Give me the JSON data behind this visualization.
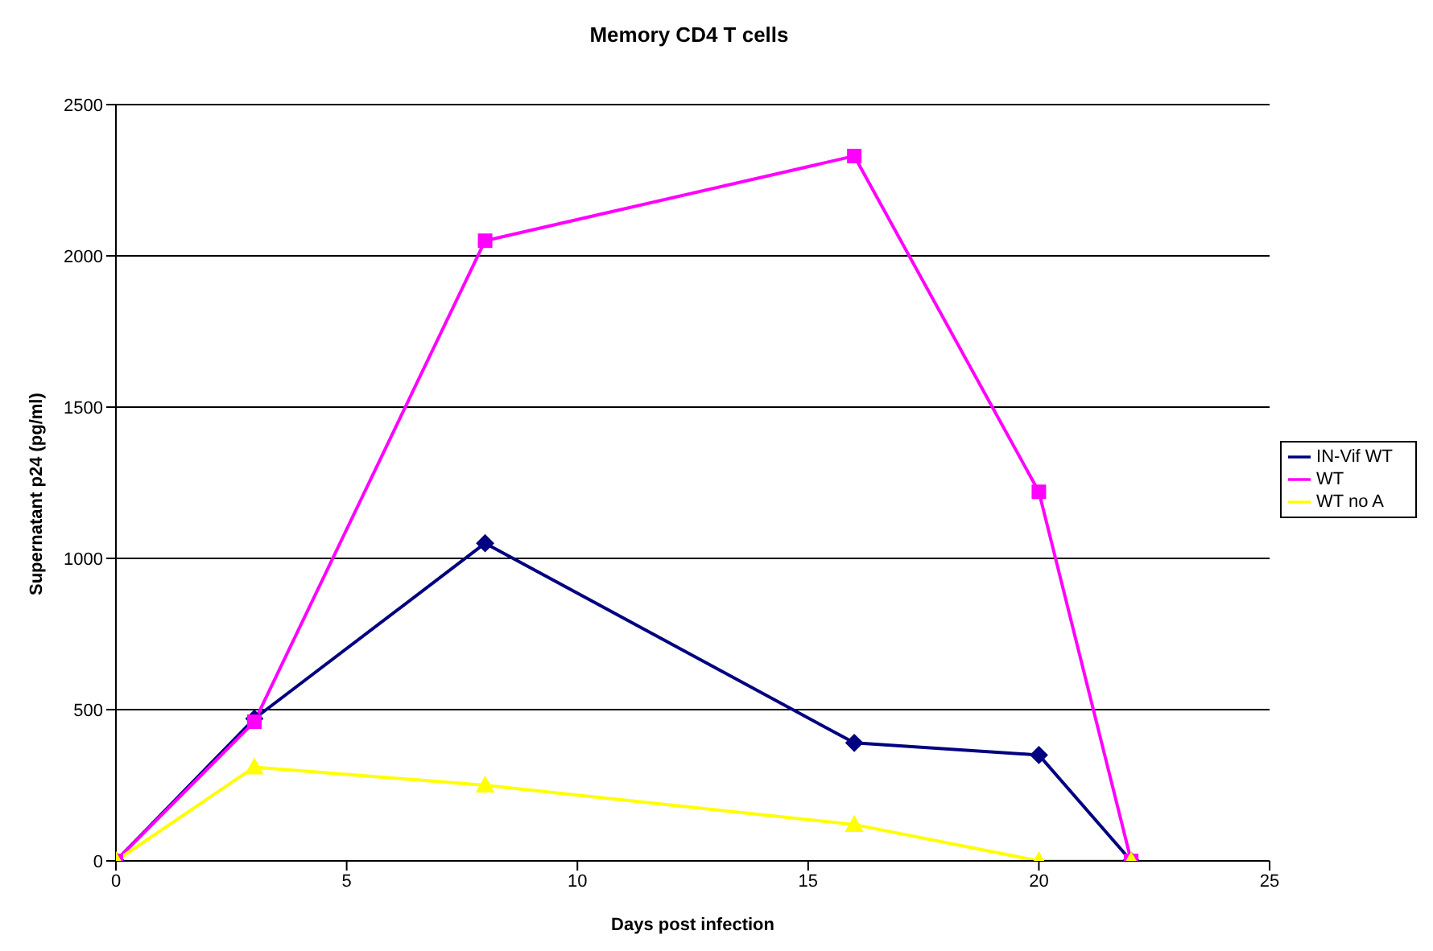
{
  "chart_data": {
    "type": "line",
    "title": "Memory CD4 T cells",
    "xlabel": "Days post infection",
    "ylabel": "Supernatant p24 (pg/ml)",
    "x": [
      0,
      3,
      8,
      16,
      20,
      22
    ],
    "series": [
      {
        "name": "IN-Vif WT",
        "color": "#000080",
        "marker": "diamond",
        "values": [
          0,
          470,
          1050,
          390,
          350,
          0
        ]
      },
      {
        "name": "WT",
        "color": "#ff00ff",
        "marker": "square",
        "values": [
          0,
          460,
          2050,
          2330,
          1220,
          0
        ]
      },
      {
        "name": "WT no A",
        "color": "#ffff00",
        "marker": "triangle",
        "values": [
          0,
          310,
          250,
          120,
          0,
          0
        ]
      }
    ],
    "xlim": [
      0,
      25
    ],
    "xticks": [
      0,
      5,
      10,
      15,
      20,
      25
    ],
    "ylim": [
      0,
      2500
    ],
    "yticks": [
      0,
      500,
      1000,
      1500,
      2000,
      2500
    ],
    "grid": "y",
    "legend": "right",
    "line_style": "solid"
  }
}
